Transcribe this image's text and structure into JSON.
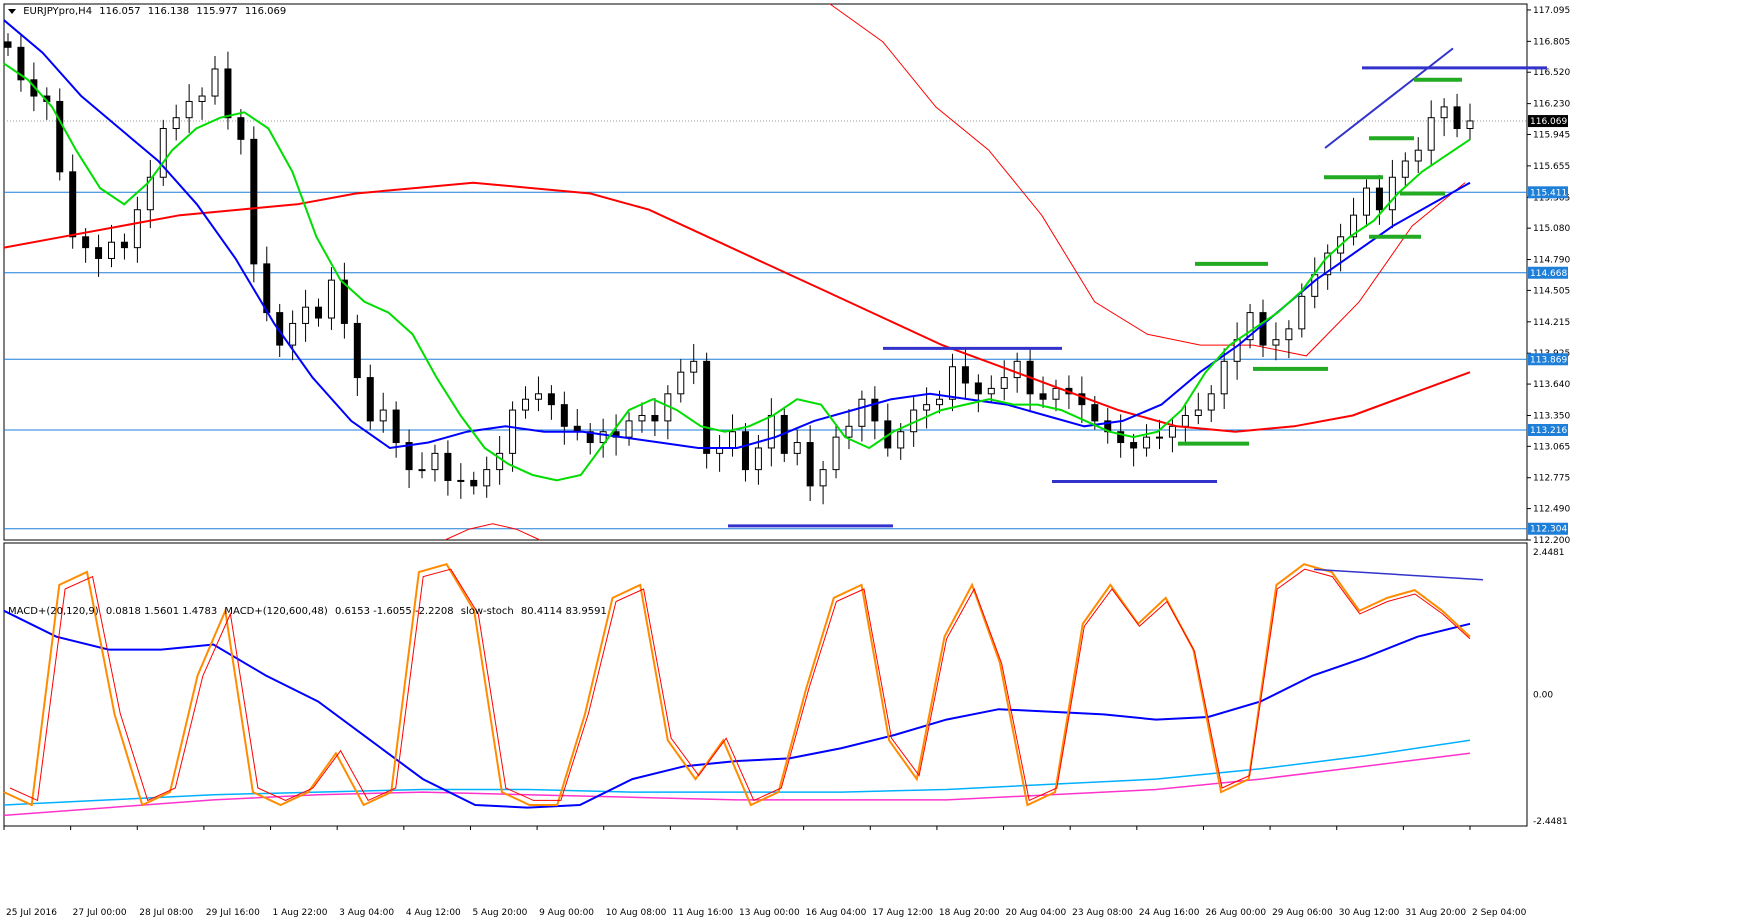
{
  "header": {
    "symbol": "EURJPYpro,H4",
    "open": "116.057",
    "high": "116.138",
    "low": "115.977",
    "close": "116.069"
  },
  "indicator_header": {
    "macd1_name": "MACD+(20,120,9)",
    "macd1_values": "0.0818 1.5601 1.4783",
    "macd2_name": "MACD+(120,600,48)",
    "macd2_values": "0.6153 -1.6055 -2.2208",
    "stoch_name": "slow-stoch",
    "stoch_values": "80.4114 83.9591"
  },
  "colors": {
    "up_candle": "#ffffff",
    "down_candle": "#000000",
    "ema_green": "#00dd00",
    "ma_blue": "#0000ff",
    "ma_red": "#ff0000",
    "h_levels": "#1e7fd8",
    "trend_blue": "#3333cc",
    "stoch_orange": "#ff8c00",
    "macd_cyan": "#00b0ff",
    "macd_magenta": "#ff33cc"
  },
  "chart_data": [
    {
      "type": "candlestick",
      "price_axis_ticks": [
        "117.095",
        "116.805",
        "116.520",
        "116.230",
        "115.945",
        "115.655",
        "115.365",
        "115.080",
        "114.790",
        "114.505",
        "114.215",
        "113.925",
        "113.640",
        "113.350",
        "113.065",
        "112.775",
        "112.490",
        "112.200"
      ],
      "ylim": [
        112.2,
        117.15
      ],
      "current_price": "116.069",
      "level_labels": [
        "115.411",
        "114.668",
        "113.869",
        "113.216",
        "112.304"
      ],
      "levels": [
        115.411,
        114.668,
        113.869,
        113.216,
        112.304
      ],
      "time_labels": [
        "25 Jul 2016",
        "27 Jul 00:00",
        "28 Jul 08:00",
        "29 Jul 16:00",
        "1 Aug 22:00",
        "3 Aug 04:00",
        "4 Aug 12:00",
        "5 Aug 20:00",
        "9 Aug 00:00",
        "10 Aug 08:00",
        "11 Aug 16:00",
        "13 Aug 00:00",
        "16 Aug 04:00",
        "17 Aug 12:00",
        "18 Aug 20:00",
        "20 Aug 04:00",
        "23 Aug 08:00",
        "24 Aug 16:00",
        "26 Aug 00:00",
        "29 Aug 06:00",
        "30 Aug 12:00",
        "31 Aug 20:00",
        "2 Sep 04:00"
      ],
      "close_path": [
        116.75,
        116.45,
        116.3,
        116.25,
        115.6,
        115.0,
        114.9,
        114.8,
        114.95,
        114.9,
        115.25,
        115.55,
        116.0,
        116.1,
        116.25,
        116.3,
        116.55,
        116.1,
        115.9,
        114.75,
        114.3,
        114.0,
        114.2,
        114.35,
        114.25,
        114.6,
        114.2,
        113.7,
        113.3,
        113.4,
        113.1,
        112.85,
        112.85,
        113.0,
        112.75,
        112.75,
        112.7,
        112.85,
        113.0,
        113.4,
        113.5,
        113.55,
        113.45,
        113.25,
        113.2,
        113.1,
        113.2,
        113.15,
        113.3,
        113.35,
        113.3,
        113.55,
        113.75,
        113.85,
        113.0,
        113.05,
        113.2,
        112.85,
        113.05,
        113.35,
        113.0,
        113.1,
        112.7,
        112.85,
        113.15,
        113.25,
        113.5,
        113.3,
        113.05,
        113.2,
        113.4,
        113.45,
        113.5,
        113.8,
        113.65,
        113.55,
        113.6,
        113.7,
        113.85,
        113.55,
        113.5,
        113.6,
        113.55,
        113.45,
        113.3,
        113.2,
        113.1,
        113.05,
        113.15,
        113.15,
        113.25,
        113.35,
        113.4,
        113.55,
        113.85,
        114.05,
        114.3,
        114.0,
        114.05,
        114.15,
        114.45,
        114.65,
        114.85,
        115.0,
        115.2,
        115.45,
        115.25,
        115.55,
        115.7,
        115.8,
        116.1,
        116.2,
        116.0,
        116.07
      ],
      "ema_green_path": [
        116.6,
        116.45,
        116.2,
        115.8,
        115.45,
        115.3,
        115.5,
        115.8,
        116.0,
        116.1,
        116.15,
        116.0,
        115.6,
        115.0,
        114.6,
        114.4,
        114.3,
        114.1,
        113.7,
        113.35,
        113.05,
        112.9,
        112.8,
        112.75,
        112.8,
        113.1,
        113.4,
        113.5,
        113.4,
        113.25,
        113.2,
        113.25,
        113.35,
        113.5,
        113.45,
        113.15,
        113.05,
        113.2,
        113.3,
        113.4,
        113.45,
        113.5,
        113.45,
        113.45,
        113.4,
        113.3,
        113.2,
        113.15,
        113.2,
        113.4,
        113.75,
        114.0,
        114.15,
        114.3,
        114.5,
        114.8,
        115.0,
        115.15,
        115.4,
        115.6,
        115.75,
        115.9
      ],
      "ma_blue_path": [
        117.0,
        116.7,
        116.3,
        116.0,
        115.7,
        115.3,
        114.8,
        114.2,
        113.7,
        113.3,
        113.05,
        113.1,
        113.2,
        113.25,
        113.2,
        113.2,
        113.15,
        113.1,
        113.05,
        113.05,
        113.15,
        113.3,
        113.4,
        113.5,
        113.55,
        113.5,
        113.45,
        113.35,
        113.25,
        113.3,
        113.45,
        113.75,
        114.0,
        114.3,
        114.6,
        114.85,
        115.1,
        115.3,
        115.5
      ],
      "ma_red_path": [
        114.9,
        115.0,
        115.1,
        115.2,
        115.25,
        115.3,
        115.4,
        115.45,
        115.5,
        115.45,
        115.4,
        115.25,
        115.0,
        114.75,
        114.5,
        114.25,
        114.0,
        113.8,
        113.6,
        113.4,
        113.25,
        113.2,
        113.25,
        113.35,
        113.55,
        113.75
      ],
      "envelope_red_path": [
        117.15,
        116.8,
        116.2,
        115.8,
        115.2,
        114.4,
        114.1,
        114.0,
        114.0,
        113.9,
        114.4,
        115.1,
        115.5
      ],
      "envelope_low_path": [
        112.2,
        112.3,
        112.35,
        112.3,
        112.2
      ]
    },
    {
      "type": "line",
      "name": "indicator",
      "ylim_labels": [
        "2.4481",
        "0.00",
        "-2.4481"
      ],
      "stoch_path": [
        0.1,
        0.05,
        0.9,
        0.95,
        0.4,
        0.05,
        0.1,
        0.55,
        0.8,
        0.1,
        0.05,
        0.1,
        0.25,
        0.05,
        0.1,
        0.95,
        0.98,
        0.8,
        0.1,
        0.05,
        0.05,
        0.4,
        0.85,
        0.9,
        0.3,
        0.15,
        0.3,
        0.05,
        0.1,
        0.5,
        0.85,
        0.9,
        0.3,
        0.15,
        0.7,
        0.9,
        0.6,
        0.05,
        0.1,
        0.75,
        0.9,
        0.75,
        0.85,
        0.65,
        0.1,
        0.15,
        0.9,
        0.98,
        0.95,
        0.8,
        0.85,
        0.88,
        0.8,
        0.7
      ],
      "macd_blue_path": [
        0.8,
        0.7,
        0.65,
        0.65,
        0.67,
        0.55,
        0.45,
        0.3,
        0.15,
        0.05,
        0.04,
        0.05,
        0.15,
        0.2,
        0.22,
        0.23,
        0.27,
        0.32,
        0.38,
        0.42,
        0.41,
        0.4,
        0.38,
        0.39,
        0.45,
        0.55,
        0.62,
        0.7,
        0.75
      ],
      "macd_cyan_path": [
        0.05,
        0.07,
        0.09,
        0.1,
        0.11,
        0.11,
        0.1,
        0.1,
        0.1,
        0.11,
        0.13,
        0.15,
        0.19,
        0.24,
        0.3
      ],
      "macd_magenta_path": [
        0.01,
        0.04,
        0.07,
        0.09,
        0.1,
        0.09,
        0.08,
        0.07,
        0.07,
        0.07,
        0.09,
        0.11,
        0.15,
        0.2,
        0.25
      ]
    }
  ]
}
